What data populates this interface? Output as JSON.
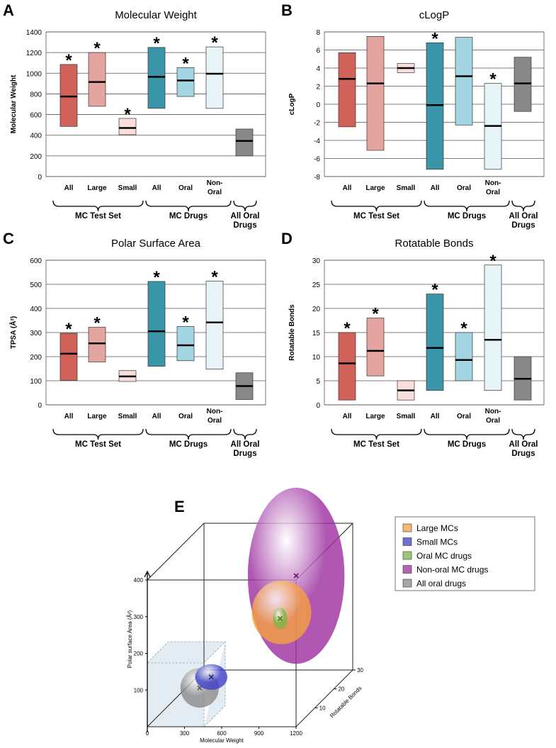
{
  "chart_data": [
    {
      "type": "floating_bar",
      "panel": "A",
      "title": "Molecular Weight",
      "ylabel": "Molecular Weight",
      "categories": [
        "All",
        "Large",
        "Small",
        "All",
        "Oral",
        "Non-\nOral",
        null
      ],
      "groups": [
        "MC Test Set",
        "MC Drugs",
        "All Oral\nDrugs"
      ],
      "low": [
        485,
        680,
        405,
        660,
        775,
        660,
        200
      ],
      "high": [
        1085,
        1200,
        563,
        1250,
        1055,
        1255,
        460
      ],
      "median": [
        775,
        915,
        470,
        965,
        930,
        995,
        345
      ],
      "colors": [
        "#d0625a",
        "#e4a4a0",
        "#f9dedd",
        "#3a95a8",
        "#a4d5e3",
        "#e6f4f8",
        "#888888"
      ],
      "markers": [
        "*",
        "*",
        "*",
        "*",
        "*",
        "*",
        null
      ],
      "ylim": [
        0,
        1400
      ],
      "yticks": [
        0,
        200,
        400,
        600,
        800,
        1000,
        1200,
        1400
      ],
      "grid": true
    },
    {
      "type": "floating_bar",
      "panel": "B",
      "title": "cLogP",
      "ylabel": "cLogP",
      "categories": [
        "All",
        "Large",
        "Small",
        "All",
        "Oral",
        "Non-\nOral",
        null
      ],
      "groups": [
        "MC Test Set",
        "MC Drugs",
        "All Oral\nDrugs"
      ],
      "low": [
        -2.5,
        -5.1,
        3.5,
        -7.2,
        -2.3,
        -7.2,
        -0.8
      ],
      "high": [
        5.7,
        7.5,
        4.5,
        6.8,
        7.4,
        2.3,
        5.2
      ],
      "median": [
        2.8,
        2.3,
        4.0,
        -0.1,
        3.1,
        -2.4,
        2.3
      ],
      "colors": [
        "#d0625a",
        "#e4a4a0",
        "#f9dedd",
        "#3a95a8",
        "#a4d5e3",
        "#e6f4f8",
        "#888888"
      ],
      "markers": [
        null,
        null,
        null,
        "*",
        null,
        "*",
        null
      ],
      "ylim": [
        -8,
        8
      ],
      "yticks": [
        -8,
        -6,
        -4,
        -2,
        0,
        2,
        4,
        6,
        8
      ],
      "grid": true
    },
    {
      "type": "floating_bar",
      "panel": "C",
      "title": "Polar Surface Area",
      "ylabel": "TPSA (Å²)",
      "categories": [
        "All",
        "Large",
        "Small",
        "All",
        "Oral",
        "Non-\nOral",
        null
      ],
      "groups": [
        "MC Test Set",
        "MC Drugs",
        "All Oral\nDrugs"
      ],
      "low": [
        102,
        178,
        97,
        160,
        183,
        148,
        22
      ],
      "high": [
        297,
        322,
        142,
        512,
        325,
        513,
        133
      ],
      "median": [
        212,
        255,
        118,
        305,
        247,
        342,
        78
      ],
      "colors": [
        "#d0625a",
        "#e4a4a0",
        "#f9dedd",
        "#3a95a8",
        "#a4d5e3",
        "#e6f4f8",
        "#888888"
      ],
      "markers": [
        "*",
        "*",
        null,
        "*",
        "*",
        "*",
        null
      ],
      "ylim": [
        0,
        600
      ],
      "yticks": [
        0,
        100,
        200,
        300,
        400,
        500,
        600
      ],
      "grid": true
    },
    {
      "type": "floating_bar",
      "panel": "D",
      "title": "Rotatable Bonds",
      "ylabel": "Rotatable Bonds",
      "categories": [
        "All",
        "Large",
        "Small",
        "All",
        "Oral",
        "Non-\nOral",
        null
      ],
      "groups": [
        "MC Test Set",
        "MC Drugs",
        "All Oral\nDrugs"
      ],
      "low": [
        1,
        6,
        1,
        3,
        5,
        3,
        1
      ],
      "high": [
        15,
        18,
        5,
        23,
        15,
        29,
        10
      ],
      "median": [
        8.6,
        11.2,
        3,
        11.8,
        9.3,
        13.5,
        5.4
      ],
      "colors": [
        "#d0625a",
        "#e4a4a0",
        "#f9dedd",
        "#3a95a8",
        "#a4d5e3",
        "#e6f4f8",
        "#888888"
      ],
      "markers": [
        "*",
        "*",
        null,
        "*",
        "*",
        "*",
        null
      ],
      "ylim": [
        0,
        30
      ],
      "yticks": [
        0,
        5,
        10,
        15,
        20,
        25,
        30
      ],
      "grid": true
    },
    {
      "type": "bubble3d",
      "panel": "E",
      "xlabel": "Molecular Weight",
      "ylabel": "Polar surface Area (Å²)",
      "zlabel": "Rotatable Bonds",
      "xlim": [
        0,
        1200
      ],
      "xticks": [
        0,
        300,
        600,
        900,
        1200
      ],
      "ylim": [
        0,
        400
      ],
      "yticks": [
        100,
        200,
        300,
        400
      ],
      "zlim": [
        0,
        30
      ],
      "zticks": [
        10,
        20,
        30
      ],
      "series": [
        {
          "name": "Large MCs",
          "color": "#f5a040",
          "values": [
            915,
            255,
            11
          ],
          "spread": [
            240,
            87
          ]
        },
        {
          "name": "Small MCs",
          "color": "#3f3fc8",
          "values": [
            470,
            120,
            3
          ],
          "spread": [
            130,
            35
          ]
        },
        {
          "name": "Oral MC drugs",
          "color": "#7ab648",
          "values": [
            930,
            247,
            9.3
          ],
          "spread": [
            57,
            29
          ]
        },
        {
          "name": "Non-oral MC drugs",
          "color": "#9b2d9e",
          "values": [
            995,
            342,
            13.5
          ],
          "spread": [
            390,
            240
          ]
        },
        {
          "name": "All oral drugs",
          "color": "#8a8a8a",
          "values": [
            340,
            78,
            5.4
          ],
          "spread": [
            155,
            54
          ]
        }
      ]
    }
  ]
}
